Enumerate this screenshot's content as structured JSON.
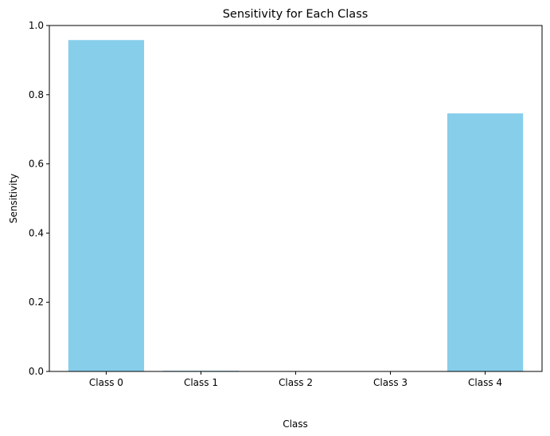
{
  "chart_data": {
    "type": "bar",
    "title": "Sensitivity for Each Class",
    "xlabel": "Class",
    "ylabel": "Sensitivity",
    "categories": [
      "Class 0",
      "Class 1",
      "Class 2",
      "Class 3",
      "Class 4"
    ],
    "values": [
      0.958,
      0.002,
      0.0,
      0.0,
      0.746
    ],
    "ylim": [
      0,
      1.0
    ],
    "yticks": [
      "0.0",
      "0.2",
      "0.4",
      "0.6",
      "0.8",
      "1.0"
    ],
    "grid": false,
    "bar_color": "#87ceeb"
  }
}
